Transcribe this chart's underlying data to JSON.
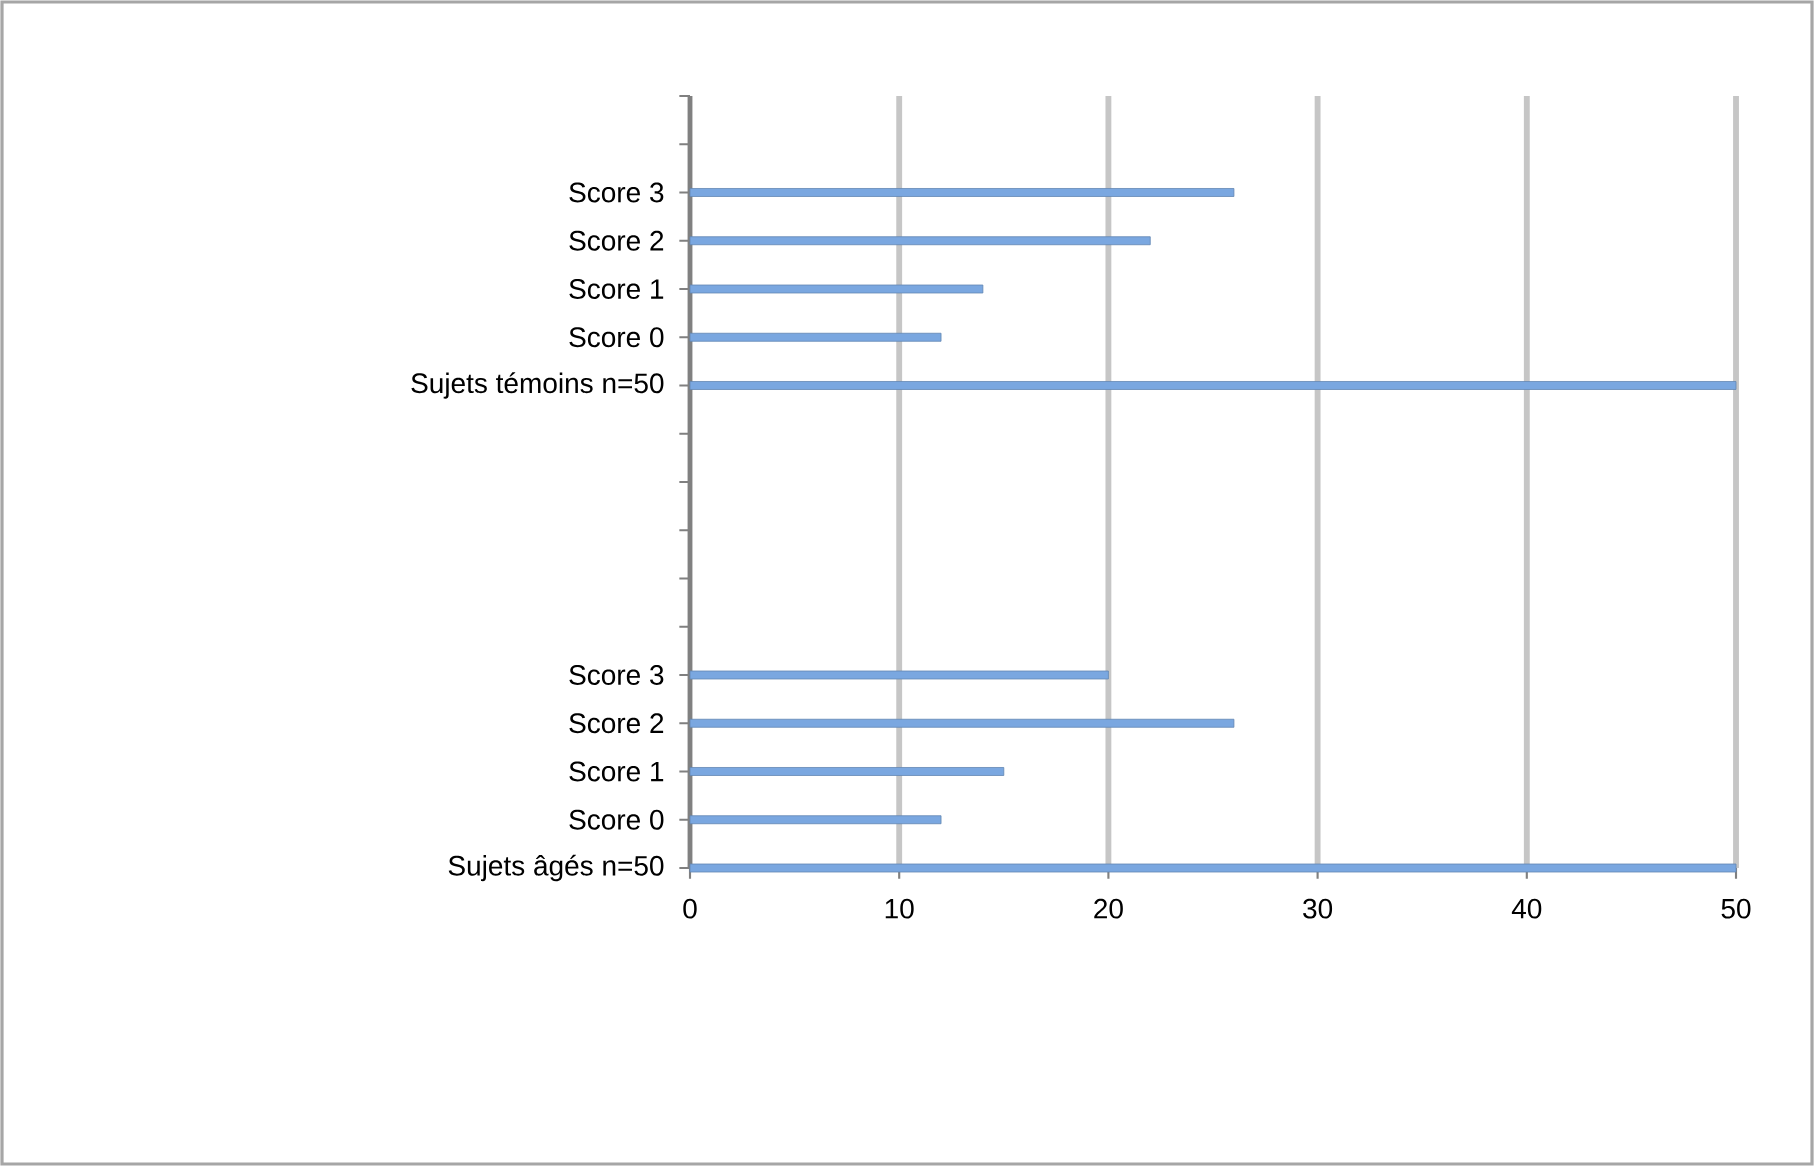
{
  "chart_data": {
    "type": "bar",
    "orientation": "horizontal",
    "categories": [
      null,
      null,
      "Score 3",
      "Score 2",
      "Score 1",
      "Score 0",
      "Sujets témoins n=50",
      null,
      null,
      null,
      null,
      null,
      "Score 3",
      "Score 2",
      "Score 1",
      "Score 0",
      "Sujets âgés n=50"
    ],
    "values": [
      null,
      null,
      26,
      22,
      14,
      12,
      50,
      null,
      null,
      null,
      null,
      null,
      20,
      26,
      15,
      12,
      50
    ],
    "color": "#7aa7e0",
    "xlim": [
      0,
      50
    ],
    "xticks": [
      0,
      10,
      20,
      30,
      40,
      50
    ],
    "grid": "x"
  }
}
